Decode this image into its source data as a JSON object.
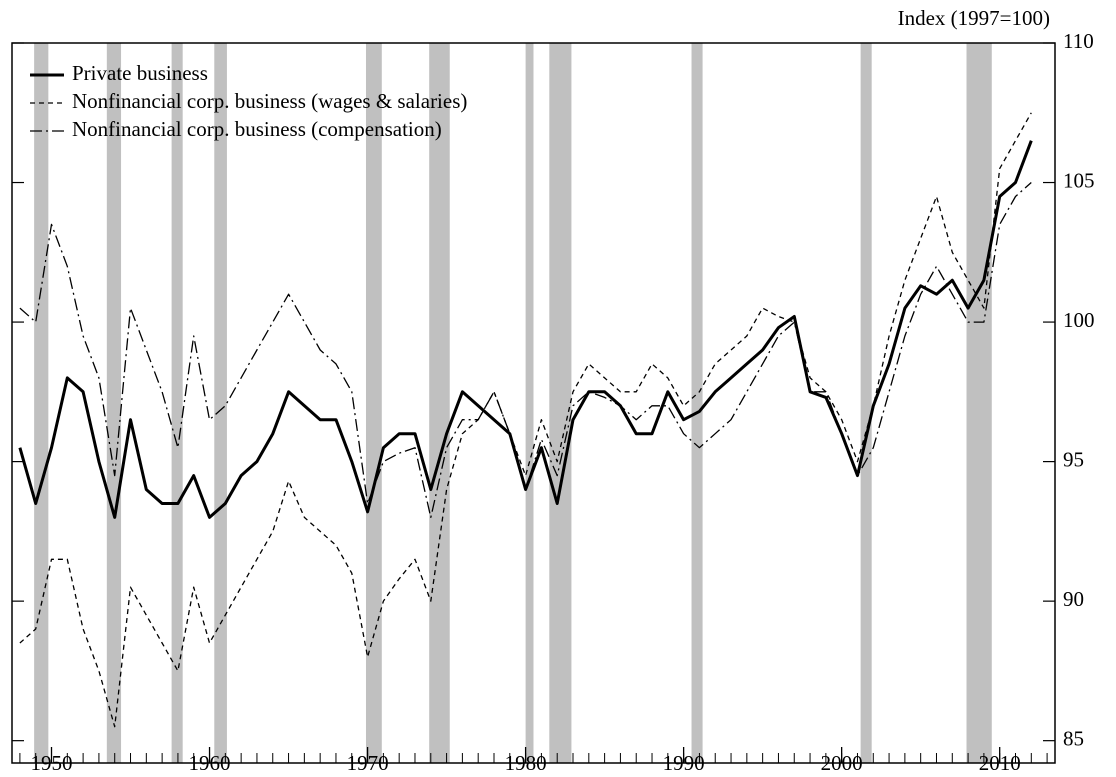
{
  "chart_data": {
    "type": "line",
    "y_axis_label": "Index (1997=100)",
    "x": [
      1948,
      1949,
      1950,
      1951,
      1952,
      1953,
      1954,
      1955,
      1956,
      1957,
      1958,
      1959,
      1960,
      1961,
      1962,
      1963,
      1964,
      1965,
      1966,
      1967,
      1968,
      1969,
      1970,
      1971,
      1972,
      1973,
      1974,
      1975,
      1976,
      1977,
      1978,
      1979,
      1980,
      1981,
      1982,
      1983,
      1984,
      1985,
      1986,
      1987,
      1988,
      1989,
      1990,
      1991,
      1992,
      1993,
      1994,
      1995,
      1996,
      1997,
      1998,
      1999,
      2000,
      2001,
      2002,
      2003,
      2004,
      2005,
      2006,
      2007,
      2008,
      2009,
      2010,
      2011,
      2012
    ],
    "series": [
      {
        "name": "Private business",
        "color": "#000000",
        "width": 3,
        "dash": "none",
        "values": [
          95.5,
          93.5,
          95.5,
          98,
          97.5,
          95,
          93,
          96.5,
          94,
          93.5,
          93.5,
          94.5,
          93,
          93.5,
          94.5,
          95,
          96,
          97.5,
          97,
          96.5,
          96.5,
          95,
          93.2,
          95.5,
          96,
          96,
          94,
          96,
          97.5,
          97,
          96.5,
          96,
          94,
          95.5,
          93.5,
          96.5,
          97.5,
          97.5,
          97,
          96,
          96,
          97.5,
          96.5,
          96.8,
          97.5,
          98,
          98.5,
          99,
          99.8,
          100.2,
          97.5,
          97.3,
          96,
          94.5,
          97,
          98.5,
          100.5,
          101.3,
          101,
          101.5,
          100.5,
          101.5,
          104.5,
          105,
          106.5
        ]
      },
      {
        "name": "Nonfinancial corp. business (wages & salaries)",
        "color": "#000000",
        "width": 1.3,
        "dash": "5,4",
        "values": [
          88.5,
          89,
          91.5,
          91.5,
          89,
          87.5,
          85.5,
          90.5,
          89.5,
          88.5,
          87.5,
          90.5,
          88.5,
          89.5,
          90.5,
          91.5,
          92.5,
          94.3,
          93,
          92.5,
          92,
          91,
          88,
          90,
          90.8,
          91.5,
          90,
          94,
          96,
          96.5,
          97.5,
          96,
          94.5,
          96.5,
          95,
          97.5,
          98.5,
          98,
          97.5,
          97.5,
          98.5,
          98,
          97,
          97.5,
          98.5,
          99,
          99.5,
          100.5,
          100.2,
          100,
          98,
          97.5,
          96.5,
          95,
          97,
          99.5,
          101.5,
          103,
          104.5,
          102.5,
          101.5,
          100.5,
          105.5,
          106.5,
          107.5
        ]
      },
      {
        "name": "Nonfinancial corp. business (compensation)",
        "color": "#000000",
        "width": 1.3,
        "dash": "12,4,2,4",
        "values": [
          100.5,
          100,
          103.5,
          102,
          99.5,
          98,
          94.5,
          100.5,
          99,
          97.5,
          95.5,
          99.5,
          96.5,
          97,
          98,
          99,
          100,
          101,
          100,
          99,
          98.5,
          97.5,
          93.5,
          95,
          95.3,
          95.5,
          93,
          95.5,
          96.5,
          96.5,
          97.5,
          96,
          94,
          95.8,
          94.5,
          97,
          97.5,
          97.3,
          97,
          96.5,
          97,
          97,
          96,
          95.5,
          96,
          96.5,
          97.5,
          98.5,
          99.5,
          100,
          97.5,
          97.5,
          96,
          94.5,
          95.5,
          97.5,
          99.5,
          101,
          102,
          101,
          100,
          100,
          103.5,
          104.5,
          105
        ]
      }
    ],
    "recessions": [
      [
        1948.9,
        1949.8
      ],
      [
        1953.5,
        1954.4
      ],
      [
        1957.6,
        1958.3
      ],
      [
        1960.3,
        1961.1
      ],
      [
        1969.9,
        1970.9
      ],
      [
        1973.9,
        1975.2
      ],
      [
        1980.0,
        1980.5
      ],
      [
        1981.5,
        1982.9
      ],
      [
        1990.5,
        1991.2
      ],
      [
        2001.2,
        2001.9
      ],
      [
        2007.9,
        2009.5
      ]
    ],
    "recession_color": "#c0c0c0",
    "xlim": [
      1947.5,
      2013.5
    ],
    "xticks": [
      1950,
      1960,
      1970,
      1980,
      1990,
      2000,
      2010
    ],
    "ylim": [
      84.2,
      110
    ],
    "yticks": [
      85,
      90,
      95,
      100,
      105,
      110
    ],
    "legend": "upper left"
  }
}
